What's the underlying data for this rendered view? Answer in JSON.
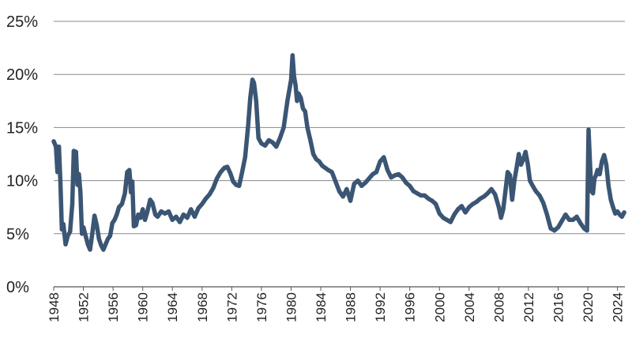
{
  "chart_data": {
    "type": "line",
    "title": "",
    "xlabel": "",
    "ylabel": "",
    "xlim": [
      1948,
      2025
    ],
    "ylim": [
      0,
      25
    ],
    "grid": true,
    "legend": "none",
    "y_ticks": [
      {
        "value": 0,
        "label": "0%"
      },
      {
        "value": 5,
        "label": "5%"
      },
      {
        "value": 10,
        "label": "10%"
      },
      {
        "value": 15,
        "label": "15%"
      },
      {
        "value": 20,
        "label": "20%"
      },
      {
        "value": 25,
        "label": "25%"
      }
    ],
    "x_ticks": [
      "1948",
      "1952",
      "1956",
      "1960",
      "1964",
      "1968",
      "1972",
      "1976",
      "1980",
      "1984",
      "1988",
      "1992",
      "1996",
      "2000",
      "2004",
      "2008",
      "2012",
      "2016",
      "2020",
      "2024"
    ],
    "series": [
      {
        "color": "#3b5674",
        "x": [
          1948.0,
          1948.3,
          1948.5,
          1948.7,
          1948.9,
          1949.1,
          1949.3,
          1949.6,
          1949.9,
          1950.2,
          1950.5,
          1950.7,
          1951.0,
          1951.2,
          1951.4,
          1951.6,
          1951.8,
          1952.0,
          1952.3,
          1952.6,
          1952.9,
          1953.2,
          1953.5,
          1953.8,
          1954.1,
          1954.4,
          1954.7,
          1955.0,
          1955.3,
          1955.6,
          1955.9,
          1956.2,
          1956.5,
          1956.8,
          1957.2,
          1957.6,
          1957.9,
          1958.2,
          1958.4,
          1958.6,
          1958.8,
          1959.1,
          1959.4,
          1959.7,
          1960.0,
          1960.3,
          1960.6,
          1961.0,
          1961.3,
          1961.7,
          1962.0,
          1962.5,
          1963.0,
          1963.5,
          1964.0,
          1964.5,
          1965.0,
          1965.5,
          1966.0,
          1966.5,
          1967.0,
          1967.5,
          1968.0,
          1968.5,
          1969.0,
          1969.5,
          1970.0,
          1970.5,
          1971.0,
          1971.4,
          1971.8,
          1972.2,
          1972.6,
          1973.0,
          1973.4,
          1973.8,
          1974.2,
          1974.5,
          1974.8,
          1975.0,
          1975.3,
          1975.6,
          1976.0,
          1976.5,
          1977.0,
          1977.5,
          1978.0,
          1978.5,
          1979.0,
          1979.5,
          1980.0,
          1980.2,
          1980.4,
          1980.6,
          1980.8,
          1981.0,
          1981.3,
          1981.6,
          1981.9,
          1982.2,
          1982.6,
          1983.0,
          1983.4,
          1983.8,
          1984.2,
          1984.6,
          1985.0,
          1985.5,
          1986.0,
          1986.5,
          1987.0,
          1987.5,
          1988.0,
          1988.5,
          1989.0,
          1989.5,
          1990.0,
          1990.5,
          1991.0,
          1991.5,
          1992.0,
          1992.5,
          1993.0,
          1993.5,
          1994.0,
          1994.5,
          1995.0,
          1995.5,
          1996.0,
          1996.5,
          1997.0,
          1997.5,
          1998.0,
          1998.5,
          1999.0,
          1999.5,
          2000.0,
          2000.5,
          2001.0,
          2001.5,
          2002.0,
          2002.5,
          2003.0,
          2003.5,
          2004.0,
          2004.5,
          2005.0,
          2005.5,
          2006.0,
          2006.5,
          2007.0,
          2007.5,
          2008.0,
          2008.3,
          2008.6,
          2008.9,
          2009.2,
          2009.5,
          2009.8,
          2010.1,
          2010.4,
          2010.7,
          2011.0,
          2011.3,
          2011.6,
          2011.9,
          2012.2,
          2012.5,
          2013.0,
          2013.5,
          2014.0,
          2014.5,
          2015.0,
          2015.5,
          2016.0,
          2016.5,
          2017.0,
          2017.5,
          2018.0,
          2018.5,
          2019.0,
          2019.5,
          2019.9,
          2020.1,
          2020.3,
          2020.5,
          2020.7,
          2020.9,
          2021.1,
          2021.3,
          2021.6,
          2021.9,
          2022.2,
          2022.5,
          2022.8,
          2023.1,
          2023.4,
          2023.7,
          2024.0,
          2024.3,
          2024.6,
          2024.9
        ],
        "y": [
          13.7,
          13.2,
          10.8,
          13.2,
          9.8,
          5.4,
          5.9,
          4.0,
          4.8,
          5.2,
          7.8,
          12.8,
          12.7,
          9.6,
          10.6,
          8.9,
          5.0,
          5.6,
          4.8,
          4.0,
          3.5,
          5.0,
          6.7,
          5.8,
          4.5,
          3.9,
          3.5,
          4.0,
          4.5,
          4.8,
          6.0,
          6.3,
          6.8,
          7.5,
          7.8,
          8.8,
          10.8,
          11.0,
          8.9,
          9.9,
          5.7,
          5.8,
          6.8,
          6.5,
          7.3,
          6.3,
          7.0,
          8.2,
          7.9,
          6.8,
          6.6,
          7.1,
          6.9,
          7.1,
          6.3,
          6.6,
          6.1,
          6.8,
          6.5,
          7.3,
          6.6,
          7.4,
          7.8,
          8.3,
          8.7,
          9.3,
          10.2,
          10.8,
          11.2,
          11.3,
          10.7,
          9.9,
          9.6,
          9.5,
          10.8,
          12.2,
          15.1,
          17.8,
          19.5,
          19.2,
          17.5,
          14.0,
          13.5,
          13.3,
          13.8,
          13.6,
          13.2,
          14.0,
          15.0,
          17.5,
          19.5,
          21.8,
          19.8,
          19.0,
          17.5,
          18.2,
          17.8,
          16.8,
          16.5,
          15.0,
          13.8,
          12.5,
          12.0,
          11.8,
          11.4,
          11.2,
          11.0,
          10.8,
          9.9,
          9.0,
          8.5,
          9.2,
          8.1,
          9.7,
          10.0,
          9.5,
          9.8,
          10.2,
          10.6,
          10.8,
          11.8,
          12.2,
          11.0,
          10.3,
          10.5,
          10.6,
          10.3,
          9.8,
          9.5,
          9.0,
          8.8,
          8.6,
          8.6,
          8.3,
          8.1,
          7.8,
          6.9,
          6.5,
          6.3,
          6.1,
          6.8,
          7.3,
          7.6,
          7.0,
          7.5,
          7.8,
          8.0,
          8.3,
          8.5,
          8.8,
          9.2,
          8.7,
          7.5,
          6.5,
          7.3,
          9.0,
          10.8,
          10.5,
          8.2,
          10.0,
          11.2,
          12.5,
          11.5,
          12.0,
          12.7,
          11.6,
          10.0,
          9.6,
          9.0,
          8.6,
          7.9,
          6.8,
          5.5,
          5.3,
          5.6,
          6.2,
          6.8,
          6.3,
          6.3,
          6.6,
          6.0,
          5.5,
          5.3,
          14.8,
          11.5,
          9.0,
          8.8,
          10.2,
          10.5,
          11.0,
          10.6,
          11.8,
          12.4,
          11.5,
          9.5,
          8.2,
          7.5,
          6.9,
          7.1,
          6.8,
          6.6,
          7.0
        ]
      }
    ]
  }
}
